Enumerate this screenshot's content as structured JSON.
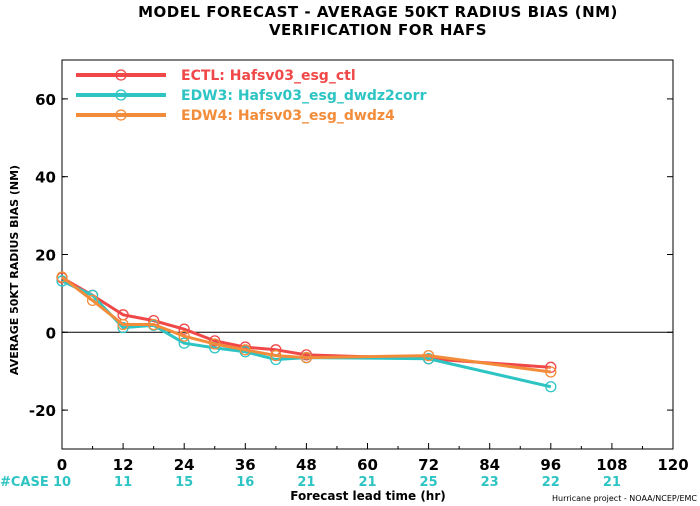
{
  "title_line1": "MODEL FORECAST - AVERAGE 50KT RADIUS BIAS (NM)",
  "title_line2": "VERIFICATION FOR HAFS",
  "credit": "Hurricane project - NOAA/NCEP/EMC",
  "case_label": "#CASE",
  "colors": {
    "ECTL": "#f04848",
    "EDW3": "#2ec4c4",
    "EDW4": "#f28c3a",
    "case_text": "#2ec4c4",
    "zero_line": "#000000"
  },
  "chart_data": {
    "type": "line",
    "xlabel": "Forecast lead time (hr)",
    "ylabel": "AVERAGE 50KT RADIUS BIAS (NM)",
    "xlim": [
      0,
      120
    ],
    "ylim": [
      -30,
      70
    ],
    "xticks": [
      0,
      12,
      24,
      36,
      48,
      60,
      72,
      84,
      96,
      108,
      120
    ],
    "yticks": [
      -20,
      0,
      20,
      40,
      60
    ],
    "grid": false,
    "legend_position": "top-left",
    "series": [
      {
        "name": "ECTL: Hafsv03_esg_ctl",
        "color": "#f04848",
        "x": [
          0,
          6,
          12,
          18,
          24,
          30,
          36,
          42,
          48,
          72,
          96
        ],
        "y": [
          14,
          9.5,
          4.5,
          3,
          0.8,
          -2.2,
          -3.8,
          -4.5,
          -5.8,
          -6.8,
          -9
        ]
      },
      {
        "name": "EDW3: Hafsv03_esg_dwdz2corr",
        "color": "#2ec4c4",
        "x": [
          0,
          6,
          12,
          18,
          24,
          30,
          36,
          42,
          48,
          72,
          96
        ],
        "y": [
          13.2,
          9.5,
          1.2,
          1.8,
          -2.8,
          -4,
          -5,
          -7,
          -6.5,
          -6.8,
          -14
        ]
      },
      {
        "name": "EDW4: Hafsv03_esg_dwdz4",
        "color": "#f28c3a",
        "x": [
          0,
          6,
          12,
          18,
          24,
          30,
          36,
          42,
          48,
          72,
          96
        ],
        "y": [
          14.2,
          8.2,
          2,
          2,
          -1,
          -3,
          -4.5,
          -6,
          -6.5,
          -6,
          -10.2
        ]
      }
    ],
    "cases": {
      "x": [
        0,
        12,
        24,
        36,
        48,
        60,
        72,
        84,
        96,
        108
      ],
      "counts": [
        "10",
        "11",
        "15",
        "16",
        "21",
        "21",
        "25",
        "23",
        "22",
        "21"
      ]
    }
  }
}
